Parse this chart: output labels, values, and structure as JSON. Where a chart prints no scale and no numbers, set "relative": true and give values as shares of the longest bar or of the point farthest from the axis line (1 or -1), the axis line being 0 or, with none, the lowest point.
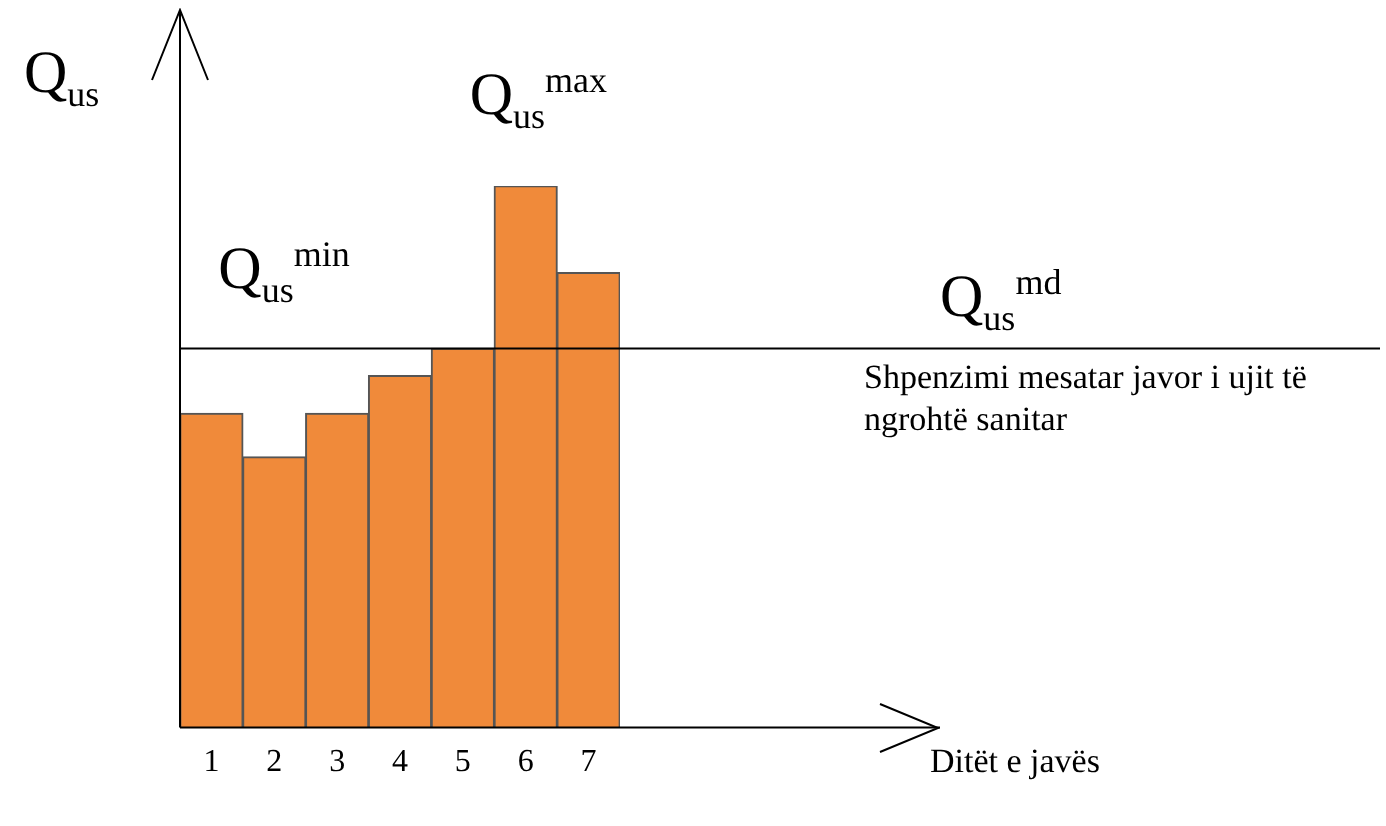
{
  "chart_data": {
    "type": "bar",
    "relative": true,
    "categories": [
      "1",
      "2",
      "3",
      "4",
      "5",
      "6",
      "7"
    ],
    "values": [
      0.58,
      0.5,
      0.58,
      0.65,
      0.7,
      1,
      0.84
    ],
    "color": "#f08a3a",
    "ylabel": "Q$_{us}$",
    "grid": false,
    "legend": false,
    "ref_lines": [
      {
        "axis": "y",
        "value": 0.7,
        "label": "Q$_{us}$$^{md}$",
        "color": "#000000"
      }
    ],
    "annotations": [
      {
        "text": "Q$_{us}$$^{min}$",
        "x": "2",
        "y": 0.5
      },
      {
        "text": "Q$_{us}$$^{max}$",
        "x": "6",
        "y": 1
      },
      "Shpenzimi mesatar javor i ujit të ngrohtë sanitar",
      "Ditët e javës"
    ]
  }
}
